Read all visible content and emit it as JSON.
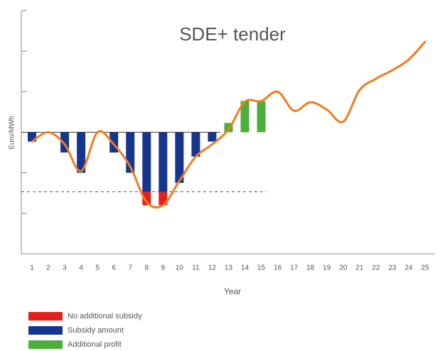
{
  "chart_data": {
    "type": "bar",
    "title": "SDE+ tender",
    "x_label": "Year",
    "y_label": "Euro/MWh",
    "categories": [
      "1",
      "2",
      "3",
      "4",
      "5",
      "6",
      "7",
      "8",
      "9",
      "10",
      "11",
      "12",
      "13",
      "14",
      "15",
      "16",
      "17",
      "18",
      "19",
      "20",
      "21",
      "22",
      "23",
      "24",
      "25"
    ],
    "series": [
      {
        "name": "No additional subsidy",
        "color": "#e3201b",
        "values": [
          null,
          null,
          null,
          null,
          null,
          null,
          null,
          -0.33,
          -0.33,
          null,
          null,
          null,
          null,
          null,
          null,
          null,
          null,
          null,
          null,
          null,
          null,
          null,
          null,
          null,
          null
        ]
      },
      {
        "name": "Subsidy amount",
        "color": "#15358f",
        "values": [
          -0.23,
          null,
          -0.5,
          -1.0,
          null,
          -0.5,
          -1.0,
          -1.47,
          -1.47,
          -1.25,
          -0.6,
          -0.23,
          null,
          null,
          null,
          null,
          null,
          null,
          null,
          null,
          null,
          null,
          null,
          null,
          null
        ]
      },
      {
        "name": "Additional profit",
        "color": "#4caf3a",
        "values": [
          null,
          null,
          null,
          null,
          null,
          null,
          null,
          null,
          null,
          null,
          null,
          null,
          0.23,
          0.77,
          0.77,
          null,
          null,
          null,
          null,
          null,
          null,
          null,
          null,
          null,
          null
        ]
      }
    ],
    "line": {
      "color": "#f07c1e",
      "values": [
        -0.23,
        0,
        -0.3,
        -0.96,
        0,
        -0.3,
        -0.85,
        -1.72,
        -1.8,
        -1.2,
        -0.6,
        -0.3,
        0.07,
        0.75,
        0.77,
        1.0,
        0.53,
        0.74,
        0.56,
        0.26,
        1.04,
        1.32,
        1.53,
        1.79,
        2.23
      ]
    },
    "reference_line": -1.47,
    "ylim": [
      -3,
      3
    ],
    "yticks": [
      -3,
      -2,
      -1,
      0,
      1,
      2,
      3
    ]
  }
}
